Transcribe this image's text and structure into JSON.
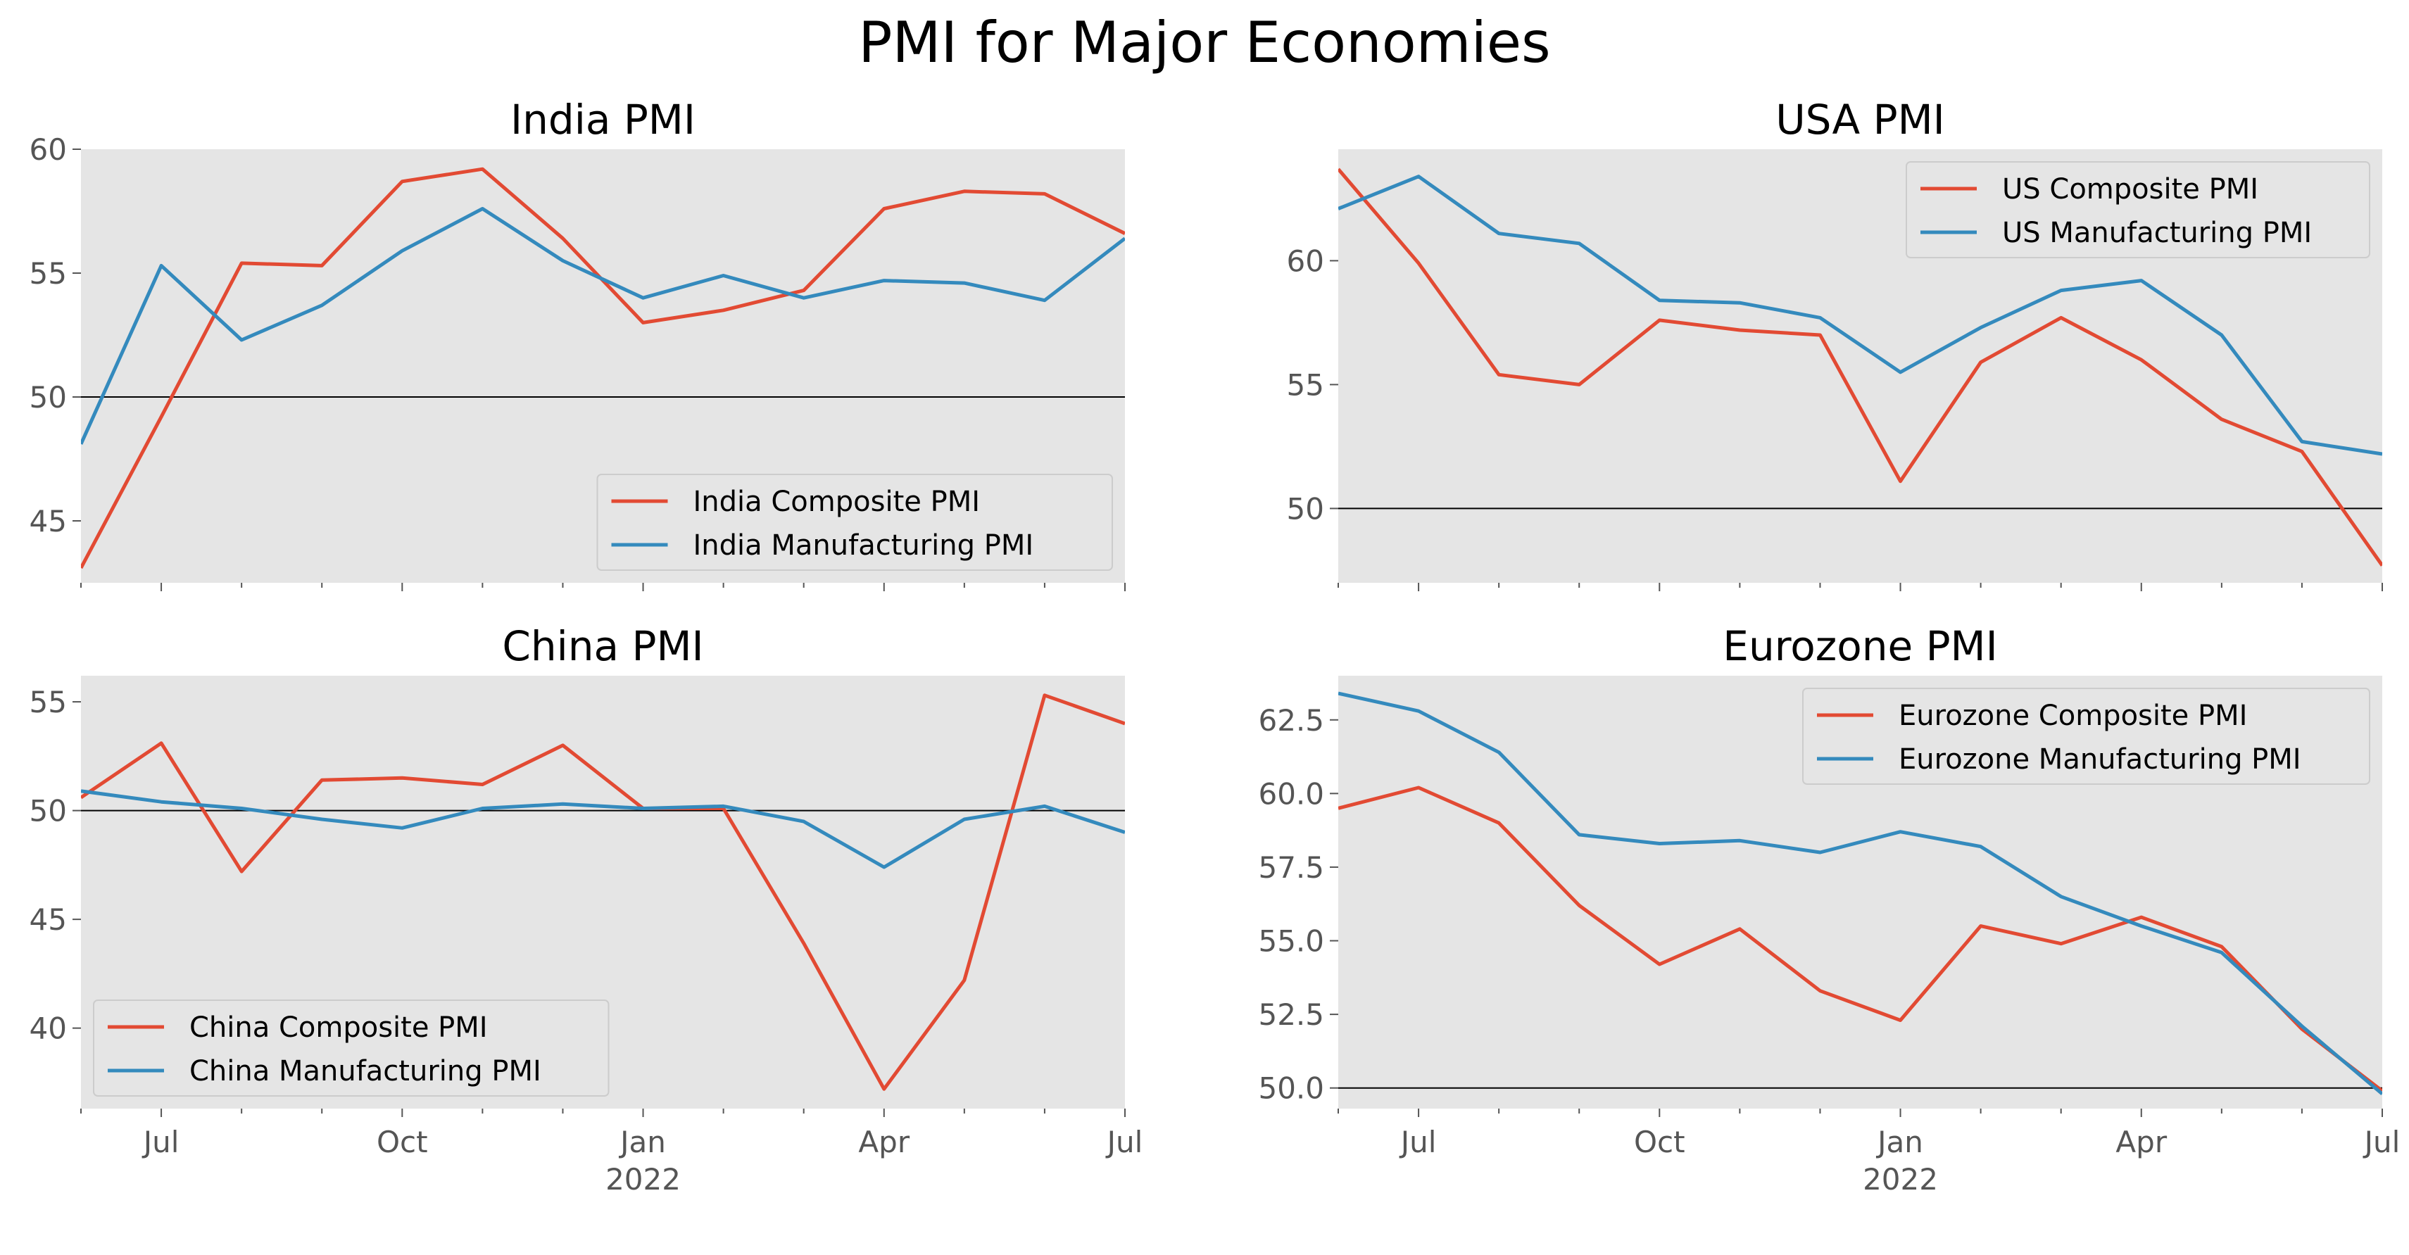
{
  "figure": {
    "title": "PMI for Major Economies"
  },
  "colors": {
    "composite": "#E24A33",
    "manufacturing": "#348ABD",
    "axes_bg": "#E5E5E5",
    "reference_line": "#000000"
  },
  "chart_data": [
    {
      "type": "line",
      "title": "India PMI",
      "x": [
        "2021-06",
        "2021-07",
        "2021-08",
        "2021-09",
        "2021-10",
        "2021-11",
        "2021-12",
        "2022-01",
        "2022-02",
        "2022-03",
        "2022-04",
        "2022-05",
        "2022-06",
        "2022-07"
      ],
      "series": [
        {
          "name": "India Composite PMI",
          "color": "#E24A33",
          "values": [
            43.1,
            49.2,
            55.4,
            55.3,
            58.7,
            59.2,
            56.4,
            53.0,
            53.5,
            54.3,
            57.6,
            58.3,
            58.2,
            56.6
          ]
        },
        {
          "name": "India Manufacturing PMI",
          "color": "#348ABD",
          "values": [
            48.1,
            55.3,
            52.3,
            53.7,
            55.9,
            57.6,
            55.5,
            54.0,
            54.9,
            54.0,
            54.7,
            54.6,
            53.9,
            56.4
          ]
        }
      ],
      "yticks": [
        45,
        50,
        55,
        60
      ],
      "ylim": [
        42.5,
        60.0
      ],
      "reference_line": 50,
      "legend": "lower-right",
      "show_x_labels": false
    },
    {
      "type": "line",
      "title": "USA PMI",
      "x": [
        "2021-06",
        "2021-07",
        "2021-08",
        "2021-09",
        "2021-10",
        "2021-11",
        "2021-12",
        "2022-01",
        "2022-02",
        "2022-03",
        "2022-04",
        "2022-05",
        "2022-06",
        "2022-07"
      ],
      "series": [
        {
          "name": "US Composite PMI",
          "color": "#E24A33",
          "values": [
            63.7,
            59.9,
            55.4,
            55.0,
            57.6,
            57.2,
            57.0,
            51.1,
            55.9,
            57.7,
            56.0,
            53.6,
            52.3,
            47.7
          ]
        },
        {
          "name": "US Manufacturing PMI",
          "color": "#348ABD",
          "values": [
            62.1,
            63.4,
            61.1,
            60.7,
            58.4,
            58.3,
            57.7,
            55.5,
            57.3,
            58.8,
            59.2,
            57.0,
            52.7,
            52.2
          ]
        }
      ],
      "yticks": [
        50,
        55,
        60
      ],
      "ylim": [
        47.0,
        64.5
      ],
      "reference_line": 50,
      "legend": "upper-right",
      "show_x_labels": false
    },
    {
      "type": "line",
      "title": "China PMI",
      "x": [
        "2021-06",
        "2021-07",
        "2021-08",
        "2021-09",
        "2021-10",
        "2021-11",
        "2021-12",
        "2022-01",
        "2022-02",
        "2022-03",
        "2022-04",
        "2022-05",
        "2022-06",
        "2022-07"
      ],
      "series": [
        {
          "name": "China Composite PMI",
          "color": "#E24A33",
          "values": [
            50.6,
            53.1,
            47.2,
            51.4,
            51.5,
            51.2,
            53.0,
            50.1,
            50.1,
            43.9,
            37.2,
            42.2,
            55.3,
            54.0
          ]
        },
        {
          "name": "China Manufacturing PMI",
          "color": "#348ABD",
          "values": [
            50.9,
            50.4,
            50.1,
            49.6,
            49.2,
            50.1,
            50.3,
            50.1,
            50.2,
            49.5,
            47.4,
            49.6,
            50.2,
            49.0
          ]
        }
      ],
      "yticks": [
        40,
        45,
        50,
        55
      ],
      "ylim": [
        36.3,
        56.2
      ],
      "reference_line": 50,
      "legend": "lower-left",
      "show_x_labels": true
    },
    {
      "type": "line",
      "title": "Eurozone PMI",
      "x": [
        "2021-06",
        "2021-07",
        "2021-08",
        "2021-09",
        "2021-10",
        "2021-11",
        "2021-12",
        "2022-01",
        "2022-02",
        "2022-03",
        "2022-04",
        "2022-05",
        "2022-06",
        "2022-07"
      ],
      "series": [
        {
          "name": "Eurozone Composite PMI",
          "color": "#E24A33",
          "values": [
            59.5,
            60.2,
            59.0,
            56.2,
            54.2,
            55.4,
            53.3,
            52.3,
            55.5,
            54.9,
            55.8,
            54.8,
            52.0,
            49.9
          ]
        },
        {
          "name": "Eurozone Manufacturing PMI",
          "color": "#348ABD",
          "values": [
            63.4,
            62.8,
            61.4,
            58.6,
            58.3,
            58.4,
            58.0,
            58.7,
            58.2,
            56.5,
            55.5,
            54.6,
            52.1,
            49.8
          ]
        }
      ],
      "yticks": [
        50.0,
        52.5,
        55.0,
        57.5,
        60.0,
        62.5
      ],
      "ylim": [
        49.3,
        64.0
      ],
      "reference_line": 50,
      "legend": "upper-right",
      "show_x_labels": true
    }
  ],
  "x_axis": {
    "major_labels": [
      {
        "month": "2021-07",
        "label": "Jul"
      },
      {
        "month": "2021-10",
        "label": "Oct"
      },
      {
        "month": "2022-01",
        "label": "Jan",
        "sublabel": "2022"
      },
      {
        "month": "2022-04",
        "label": "Apr"
      },
      {
        "month": "2022-07",
        "label": "Jul"
      }
    ]
  }
}
